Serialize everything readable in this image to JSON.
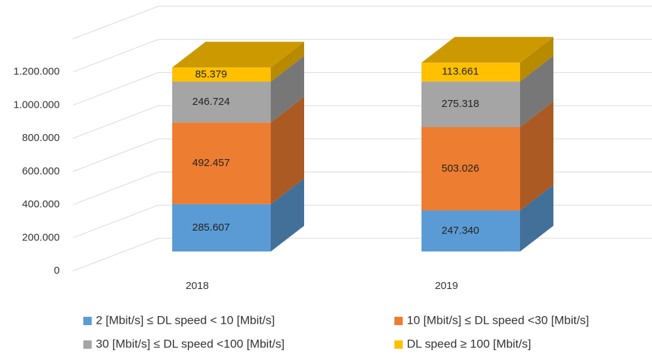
{
  "chart_data": {
    "type": "bar",
    "stacked": true,
    "three_d": true,
    "categories": [
      "2018",
      "2019"
    ],
    "series": [
      {
        "name": "2 [Mbit/s] ≤ DL speed < 10 [Mbit/s]",
        "color": "#5b9bd5",
        "values": [
          285607,
          247340
        ],
        "value_labels": [
          "285.607",
          "247.340"
        ]
      },
      {
        "name": "10 [Mbit/s] ≤  DL speed <30 [Mbit/s]",
        "color": "#ed7d31",
        "values": [
          492457,
          503026
        ],
        "value_labels": [
          "492.457",
          "503.026"
        ]
      },
      {
        "name": "30 [Mbit/s] ≤  DL speed <100 [Mbit/s]",
        "color": "#a5a5a5",
        "values": [
          246724,
          275318
        ],
        "value_labels": [
          "246.724",
          "275.318"
        ]
      },
      {
        "name": "DL speed ≥ 100 [Mbit/s]",
        "color": "#ffc000",
        "values": [
          85379,
          113661
        ],
        "value_labels": [
          "85.379",
          "113.661"
        ]
      }
    ],
    "ylim": [
      0,
      1400000
    ],
    "yticks": [
      0,
      {
        "value": 200000,
        "label": "200.000"
      },
      {
        "value": 400000,
        "label": "400.000"
      },
      {
        "value": 600000,
        "label": "600.000"
      },
      {
        "value": 800000,
        "label": "800.000"
      },
      {
        "value": 1000000,
        "label": "1.000.000"
      },
      {
        "value": 1200000,
        "label": "1.200.000"
      }
    ],
    "grid": true,
    "legend": "bottom"
  }
}
